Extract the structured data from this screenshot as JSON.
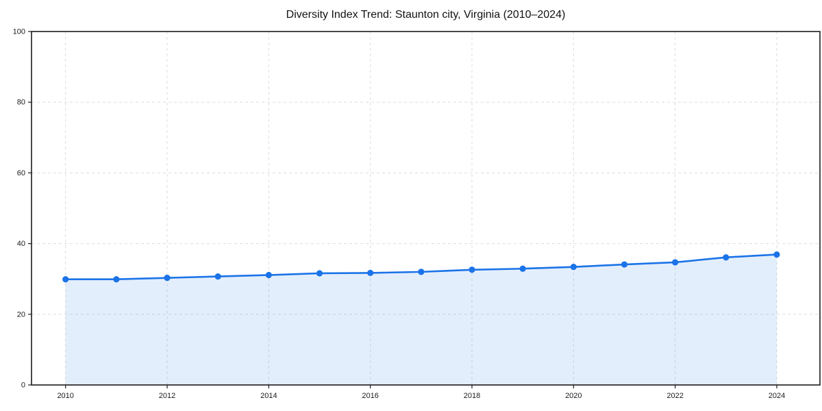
{
  "chart_data": {
    "type": "area",
    "title": "Diversity Index Trend: Staunton city, Virginia (2010–2024)",
    "series_name": "Diversity Index",
    "x": [
      2010,
      2011,
      2012,
      2013,
      2014,
      2015,
      2016,
      2017,
      2018,
      2019,
      2020,
      2021,
      2022,
      2023,
      2024
    ],
    "values": [
      29.9,
      29.9,
      30.3,
      30.7,
      31.1,
      31.6,
      31.7,
      32.0,
      32.6,
      32.9,
      33.4,
      34.1,
      34.7,
      36.1,
      36.9
    ],
    "xlabel": "",
    "ylabel": "",
    "ylim": [
      0,
      100
    ],
    "x_range": [
      2009.33,
      2024.85
    ],
    "yticks": [
      0,
      20,
      40,
      60,
      80,
      100
    ],
    "xticks": [
      2010,
      2012,
      2014,
      2016,
      2018,
      2020,
      2022,
      2024
    ],
    "grid": "dashed-both-axes",
    "legend": "none",
    "marker": "circle",
    "colors": {
      "line": "#1a73e8",
      "marker": "#1a73e8",
      "fill": "rgba(26,115,232,0.12)",
      "grid": "#dcdcdc",
      "spine": "#1a1a1a",
      "tick_label": "#1a1a1a",
      "title": "#111111",
      "background": "#ffffff"
    }
  }
}
